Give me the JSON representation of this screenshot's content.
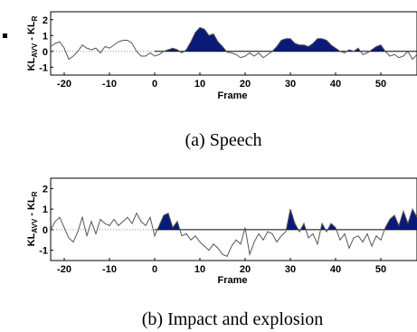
{
  "chart_data": [
    {
      "type": "line",
      "caption": "(a) Speech",
      "xlabel": "Frame",
      "ylabel_main": "KL",
      "ylabel_sub1": "AVV",
      "ylabel_mid": " - KL",
      "ylabel_sub2": "R",
      "xlim": [
        -23,
        58
      ],
      "ylim": [
        -1.5,
        2.5
      ],
      "xticks": [
        -20,
        -10,
        0,
        10,
        20,
        30,
        40,
        50
      ],
      "yticks": [
        -1,
        0,
        1,
        2
      ],
      "fill_color": "#0a1a78",
      "line_color": "#555555",
      "x": [
        -23,
        -22,
        -21,
        -20,
        -19,
        -18,
        -17,
        -16,
        -15,
        -14,
        -13,
        -12,
        -11,
        -10,
        -9,
        -8,
        -7,
        -6,
        -5,
        -4,
        -3,
        -2,
        -1,
        0,
        1,
        2,
        3,
        4,
        5,
        6,
        7,
        8,
        9,
        10,
        11,
        12,
        13,
        14,
        15,
        16,
        17,
        18,
        19,
        20,
        21,
        22,
        23,
        24,
        25,
        26,
        27,
        28,
        29,
        30,
        31,
        32,
        33,
        34,
        35,
        36,
        37,
        38,
        39,
        40,
        41,
        42,
        43,
        44,
        45,
        46,
        47,
        48,
        49,
        50,
        51,
        52,
        53,
        54,
        55,
        56,
        57,
        58
      ],
      "y": [
        0.3,
        0.5,
        0.6,
        0.2,
        -0.5,
        -0.3,
        0.0,
        0.4,
        0.2,
        0.1,
        0.2,
        -0.1,
        0.3,
        0.2,
        0.4,
        0.6,
        0.7,
        0.7,
        0.5,
        0.0,
        -0.3,
        -0.3,
        -0.1,
        -0.3,
        -0.2,
        0.0,
        0.1,
        0.2,
        0.1,
        -0.1,
        0.1,
        0.6,
        1.2,
        1.5,
        1.4,
        1.0,
        1.1,
        0.6,
        0.3,
        -0.05,
        -0.1,
        -0.2,
        -0.4,
        -0.3,
        -0.1,
        -0.3,
        -0.1,
        -0.4,
        -0.2,
        0.0,
        0.3,
        0.7,
        0.8,
        0.8,
        0.5,
        0.4,
        0.4,
        0.3,
        0.5,
        0.8,
        0.8,
        0.7,
        0.4,
        0.2,
        0.0,
        -0.1,
        0.1,
        0.0,
        0.2,
        -0.2,
        -0.1,
        0.1,
        0.3,
        0.4,
        0.0,
        -0.3,
        -0.2,
        -0.4,
        -0.3,
        0.0,
        -0.5,
        -0.2
      ]
    },
    {
      "type": "line",
      "caption": "(b) Impact and explosion",
      "xlabel": "Frame",
      "ylabel_main": "KL",
      "ylabel_sub1": "AVV",
      "ylabel_mid": " - KL",
      "ylabel_sub2": "R",
      "xlim": [
        -23,
        58
      ],
      "ylim": [
        -1.5,
        2.5
      ],
      "xticks": [
        -20,
        -10,
        0,
        10,
        20,
        30,
        40,
        50
      ],
      "yticks": [
        -1,
        0,
        1,
        2
      ],
      "fill_color": "#0a1a78",
      "line_color": "#555555",
      "x": [
        -23,
        -22,
        -21,
        -20,
        -19,
        -18,
        -17,
        -16,
        -15,
        -14,
        -13,
        -12,
        -11,
        -10,
        -9,
        -8,
        -7,
        -6,
        -5,
        -4,
        -3,
        -2,
        -1,
        0,
        1,
        2,
        3,
        4,
        5,
        6,
        7,
        8,
        9,
        10,
        11,
        12,
        13,
        14,
        15,
        16,
        17,
        18,
        19,
        20,
        21,
        22,
        23,
        24,
        25,
        26,
        27,
        28,
        29,
        30,
        31,
        32,
        33,
        34,
        35,
        36,
        37,
        38,
        39,
        40,
        41,
        42,
        43,
        44,
        45,
        46,
        47,
        48,
        49,
        50,
        51,
        52,
        53,
        54,
        55,
        56,
        57,
        58
      ],
      "y": [
        0.0,
        0.4,
        0.6,
        0.1,
        -0.4,
        -0.6,
        -0.1,
        0.6,
        -0.3,
        0.4,
        -0.2,
        0.5,
        0.3,
        0.2,
        0.5,
        0.2,
        0.4,
        0.6,
        0.3,
        0.8,
        0.4,
        0.2,
        0.6,
        -0.3,
        0.2,
        0.7,
        0.8,
        0.1,
        0.4,
        -0.3,
        -0.2,
        -0.5,
        -0.3,
        -0.6,
        -0.8,
        -1.0,
        -0.7,
        -0.9,
        -1.2,
        -1.3,
        -0.8,
        -0.5,
        -0.7,
        0.1,
        -1.2,
        -0.6,
        -0.2,
        -0.5,
        -0.1,
        -0.2,
        -0.6,
        -0.3,
        -0.1,
        1.0,
        0.3,
        -0.1,
        0.3,
        -0.4,
        -0.2,
        -0.7,
        0.3,
        -0.1,
        0.3,
        0.1,
        -0.5,
        -0.2,
        -0.9,
        -0.4,
        -0.3,
        -0.6,
        -0.2,
        -0.8,
        -0.3,
        -0.5,
        0.1,
        0.5,
        0.7,
        0.2,
        0.9,
        0.3,
        1.0,
        0.6
      ]
    }
  ]
}
